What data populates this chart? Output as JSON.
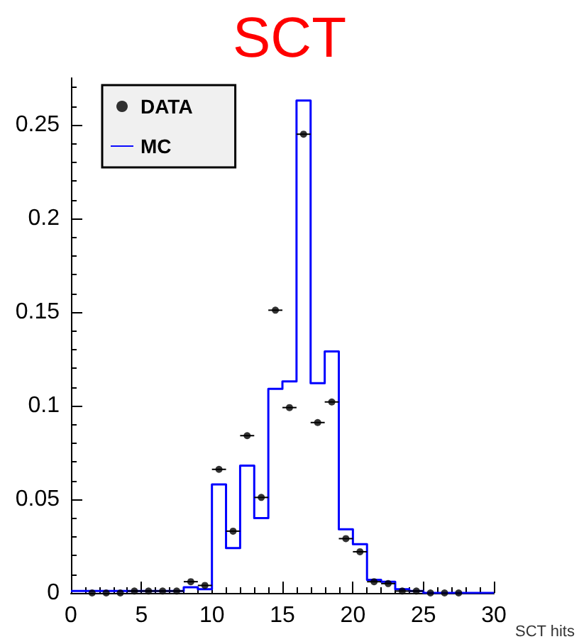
{
  "chart_data": {
    "type": "histogram",
    "title": "SCT",
    "xlabel": "SCT hits",
    "bins": [
      0,
      1,
      2,
      3,
      4,
      5,
      6,
      7,
      8,
      9,
      10,
      11,
      12,
      13,
      14,
      15,
      16,
      17,
      18,
      19,
      20,
      21,
      22,
      23,
      24,
      25,
      26,
      27,
      28,
      29,
      30
    ],
    "series": [
      {
        "name": "DATA",
        "type": "scatter",
        "color": "#000000",
        "marker": "circle",
        "x": [
          1.5,
          2.5,
          3.5,
          4.5,
          5.5,
          6.5,
          7.5,
          8.5,
          9.5,
          10.5,
          11.5,
          12.5,
          13.5,
          14.5,
          15.5,
          16.5,
          17.5,
          18.5,
          19.5,
          20.5,
          21.5,
          22.5,
          23.5,
          24.5,
          25.5,
          26.5,
          27.5
        ],
        "values": [
          0,
          0,
          0,
          0.001,
          0.001,
          0.001,
          0.001,
          0.006,
          0.004,
          0.066,
          0.033,
          0.084,
          0.051,
          0.151,
          0.099,
          0.245,
          0.091,
          0.102,
          0.029,
          0.022,
          0.006,
          0.005,
          0.001,
          0.001,
          0,
          0,
          0
        ],
        "xerrors": [
          null,
          null,
          null,
          0.5,
          0.5,
          0.5,
          0.5,
          0.5,
          0.5,
          0.5,
          0.5,
          0.5,
          0.5,
          0.5,
          0.5,
          0.5,
          0.5,
          0.5,
          0.5,
          0.5,
          0.5,
          0.5,
          0.5,
          0.5,
          null,
          null,
          null
        ]
      },
      {
        "name": "MC",
        "type": "histogram",
        "color": "#0000ff",
        "values": [
          0.001,
          0.001,
          0.001,
          0.001,
          0.001,
          0.001,
          0.001,
          0.001,
          0.003,
          0.002,
          0.058,
          0.024,
          0.068,
          0.04,
          0.109,
          0.113,
          0.263,
          0.112,
          0.129,
          0.034,
          0.026,
          0.007,
          0.006,
          0.002,
          0.001,
          0,
          0,
          0,
          0,
          0
        ]
      }
    ],
    "xlim": [
      0,
      30
    ],
    "xticks": [
      0,
      5,
      10,
      15,
      20,
      25,
      30
    ],
    "ylim": [
      0,
      0.275
    ],
    "yticks": [
      0,
      0.05,
      0.1,
      0.15,
      0.2,
      0.25
    ],
    "grid": false,
    "legend": "top left"
  }
}
